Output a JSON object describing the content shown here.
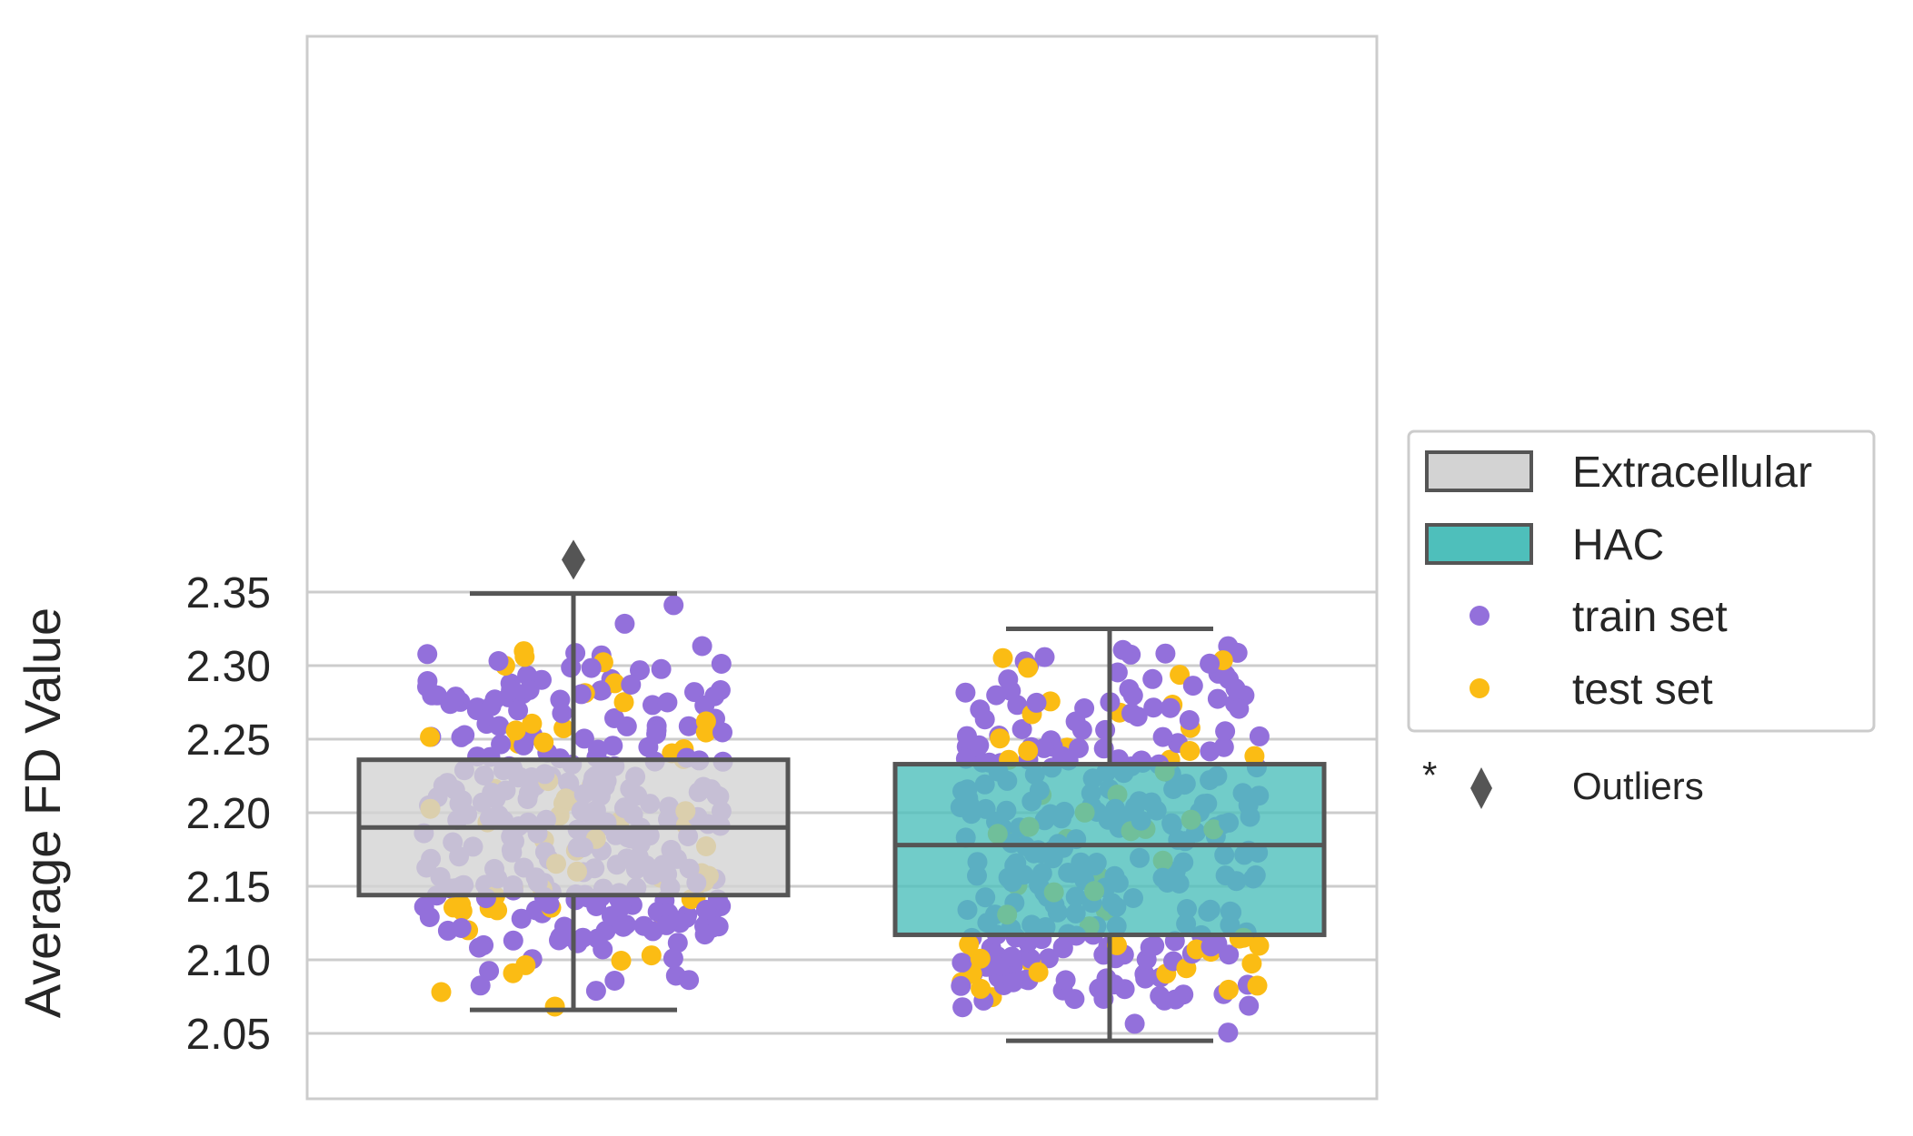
{
  "chart_data": {
    "type": "box",
    "xlabel": "",
    "ylabel": "Average FD Value",
    "ylim": [
      2.03,
      2.385
    ],
    "y_ticks": [
      "2.05",
      "2.10",
      "2.15",
      "2.20",
      "2.25",
      "2.30",
      "2.35"
    ],
    "y_tick_values": [
      2.05,
      2.1,
      2.15,
      2.2,
      2.25,
      2.3,
      2.35
    ],
    "grid": "horizontal",
    "legend_position": "right",
    "boxes": [
      {
        "name": "Extracellular",
        "color": "#d3d3d3",
        "whisker_low": 2.066,
        "q1": 2.144,
        "median": 2.19,
        "q3": 2.236,
        "whisker_high": 2.349,
        "outliers": [
          2.372
        ]
      },
      {
        "name": "HAC",
        "color": "#4ebfbb",
        "whisker_low": 2.045,
        "q1": 2.117,
        "median": 2.178,
        "q3": 2.233,
        "whisker_high": 2.325,
        "outliers": []
      }
    ],
    "point_series": [
      {
        "name": "train set",
        "color": "#9370db"
      },
      {
        "name": "test set",
        "color": "#fbbc14"
      }
    ],
    "legend": {
      "entries": [
        "Extracellular",
        "HAC",
        "train set",
        "test set"
      ],
      "outlier_marker": "*",
      "outlier_label": "Outliers"
    }
  }
}
